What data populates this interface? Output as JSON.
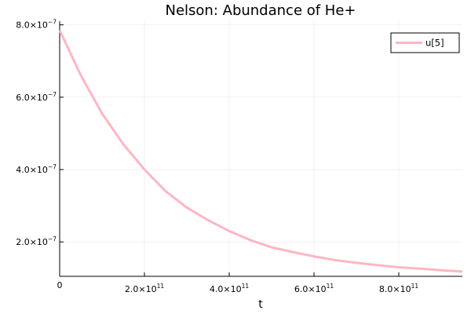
{
  "chart_data": {
    "type": "line",
    "title": "Nelson: Abundance of He+",
    "xlabel": "t",
    "ylabel": "",
    "xlim": [
      0,
      950000000000.0
    ],
    "ylim": [
      1.05e-07,
      8.1e-07
    ],
    "grid": true,
    "legend_position": "top-right",
    "x_ticks": [
      {
        "value": 0,
        "label": "0",
        "exp": ""
      },
      {
        "value": 200000000000.0,
        "label": "2.0×10",
        "exp": "11"
      },
      {
        "value": 400000000000.0,
        "label": "4.0×10",
        "exp": "11"
      },
      {
        "value": 600000000000.0,
        "label": "6.0×10",
        "exp": "11"
      },
      {
        "value": 800000000000.0,
        "label": "8.0×10",
        "exp": "11"
      }
    ],
    "y_ticks": [
      {
        "value": 2e-07,
        "label": "2.0×10",
        "exp": "−7"
      },
      {
        "value": 4e-07,
        "label": "4.0×10",
        "exp": "−7"
      },
      {
        "value": 6e-07,
        "label": "6.0×10",
        "exp": "−7"
      },
      {
        "value": 8e-07,
        "label": "8.0×10",
        "exp": "−7"
      }
    ],
    "series": [
      {
        "name": "u[5]",
        "color": "#FFB6C1",
        "x": [
          0,
          50000000000.0,
          100000000000.0,
          150000000000.0,
          200000000000.0,
          250000000000.0,
          300000000000.0,
          350000000000.0,
          400000000000.0,
          450000000000.0,
          500000000000.0,
          550000000000.0,
          600000000000.0,
          650000000000.0,
          700000000000.0,
          750000000000.0,
          800000000000.0,
          850000000000.0,
          900000000000.0,
          950000000000.0
        ],
        "y": [
          7.85e-07,
          6.6e-07,
          5.55e-07,
          4.7e-07,
          4e-07,
          3.4e-07,
          2.95e-07,
          2.6e-07,
          2.3e-07,
          2.05e-07,
          1.85e-07,
          1.72e-07,
          1.6e-07,
          1.5e-07,
          1.42e-07,
          1.36e-07,
          1.3e-07,
          1.26e-07,
          1.22e-07,
          1.18e-07
        ]
      }
    ]
  }
}
